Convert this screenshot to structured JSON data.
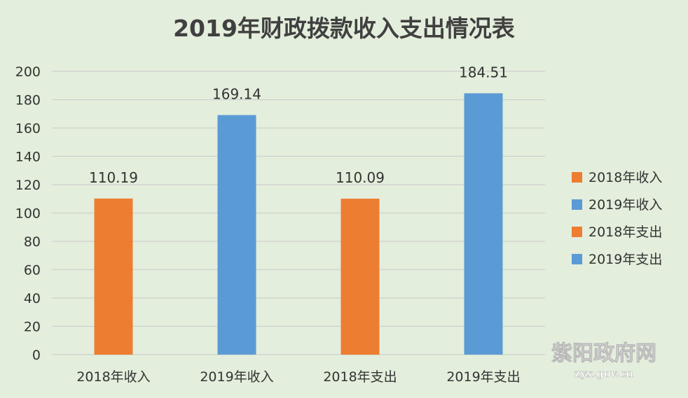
{
  "chart_data": {
    "type": "bar",
    "title": "2019年财政拨款收入支出情况表",
    "categories": [
      "2018年收入",
      "2019年收入",
      "2018年支出",
      "2019年支出"
    ],
    "values": [
      110.19,
      169.14,
      110.09,
      184.51
    ],
    "value_labels": [
      "110.19",
      "169.14",
      "110.09",
      "184.51"
    ],
    "bar_colors": [
      "#ed7d31",
      "#5b9bd5",
      "#ed7d31",
      "#5b9bd5"
    ],
    "ylim": [
      0,
      200
    ],
    "yticks": [
      "0",
      "20",
      "40",
      "60",
      "80",
      "100",
      "120",
      "140",
      "160",
      "180",
      "200"
    ],
    "grid": true,
    "legend": {
      "position": "right",
      "entries": [
        {
          "label": "2018年收入",
          "color": "#ed7d31"
        },
        {
          "label": "2019年收入",
          "color": "#5b9bd5"
        },
        {
          "label": "2018年支出",
          "color": "#ed7d31"
        },
        {
          "label": "2019年支出",
          "color": "#5b9bd5"
        }
      ]
    },
    "xlabel": "",
    "ylabel": ""
  },
  "watermark": {
    "name": "紫阳政府网",
    "url": "zyx.gov.cn"
  },
  "colors": {
    "background": "#e3eedc",
    "gridline": "#d0d0d0"
  }
}
